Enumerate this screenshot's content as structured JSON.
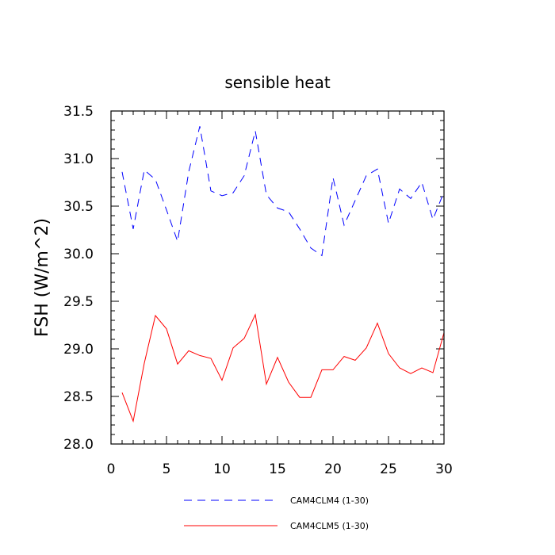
{
  "chart_data": {
    "type": "line",
    "title": "sensible heat",
    "xlabel": "",
    "ylabel": "FSH  (W/m^2)",
    "xlim": [
      0,
      30
    ],
    "ylim": [
      28.0,
      31.5
    ],
    "xticks": [
      0,
      5,
      10,
      15,
      20,
      25,
      30
    ],
    "xtick_labels": [
      "0",
      "5",
      "10",
      "15",
      "20",
      "25",
      "30"
    ],
    "yticks": [
      28.0,
      28.5,
      29.0,
      29.5,
      30.0,
      30.5,
      31.0,
      31.5
    ],
    "ytick_labels": [
      "28.0",
      "28.5",
      "29.0",
      "29.5",
      "30.0",
      "30.5",
      "31.0",
      "31.5"
    ],
    "grid": false,
    "legend_position": "bottom",
    "x": [
      1,
      2,
      3,
      4,
      5,
      6,
      7,
      8,
      9,
      10,
      11,
      12,
      13,
      14,
      15,
      16,
      17,
      18,
      19,
      20,
      21,
      22,
      23,
      24,
      25,
      26,
      27,
      28,
      29,
      30
    ],
    "series": [
      {
        "name": "CAM4CLM4 (1-30)",
        "color": "#0000ff",
        "style": "dashed",
        "values": [
          30.86,
          30.26,
          30.88,
          30.78,
          30.46,
          30.13,
          30.86,
          31.34,
          30.66,
          30.61,
          30.64,
          30.82,
          31.29,
          30.62,
          30.48,
          30.44,
          30.26,
          30.06,
          29.98,
          30.8,
          30.3,
          30.56,
          30.82,
          30.89,
          30.32,
          30.68,
          30.58,
          30.75,
          30.36,
          30.65
        ]
      },
      {
        "name": "CAM4CLM5 (1-30)",
        "color": "#ff0000",
        "style": "solid",
        "values": [
          28.54,
          28.24,
          28.85,
          29.35,
          29.21,
          28.84,
          28.98,
          28.93,
          28.9,
          28.67,
          29.01,
          29.11,
          29.36,
          28.63,
          28.91,
          28.65,
          28.49,
          28.49,
          28.78,
          28.78,
          28.92,
          28.88,
          29.01,
          29.27,
          28.95,
          28.8,
          28.74,
          28.8,
          28.75,
          29.17
        ]
      }
    ]
  }
}
